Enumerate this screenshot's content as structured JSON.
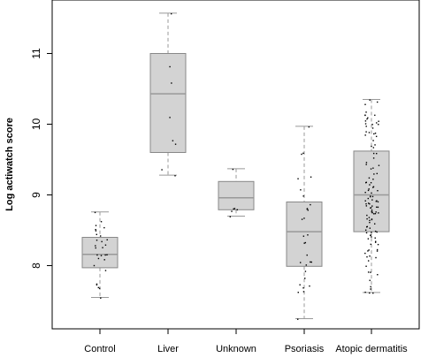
{
  "chart_data": {
    "type": "box",
    "title": "",
    "xlabel": "",
    "ylabel": "Log actiwatch score",
    "ylim": [
      7.25,
      11.75
    ],
    "yticks": [
      8,
      9,
      10,
      11
    ],
    "grid": false,
    "categories": [
      "Control",
      "Liver",
      "Unknown",
      "Psoriasis",
      "Atopic dermatitis"
    ],
    "boxes": [
      {
        "min": 7.55,
        "q1": 7.97,
        "median": 8.16,
        "q3": 8.4,
        "max": 8.76
      },
      {
        "min": 9.28,
        "q1": 9.6,
        "median": 10.43,
        "q3": 11.0,
        "max": 11.57
      },
      {
        "min": 8.7,
        "q1": 8.79,
        "median": 8.96,
        "q3": 9.19,
        "max": 9.37
      },
      {
        "min": 7.25,
        "q1": 7.99,
        "median": 8.48,
        "q3": 8.9,
        "max": 9.97
      },
      {
        "min": 7.62,
        "q1": 8.48,
        "median": 9.0,
        "q3": 9.62,
        "max": 10.35
      }
    ],
    "point_counts": [
      28,
      8,
      6,
      30,
      120
    ],
    "colors": {
      "box_fill": "#d3d3d3",
      "box_stroke": "#888888",
      "median": "#999999",
      "whisker": "#999999",
      "points": "#000000",
      "axis": "#000000"
    }
  }
}
